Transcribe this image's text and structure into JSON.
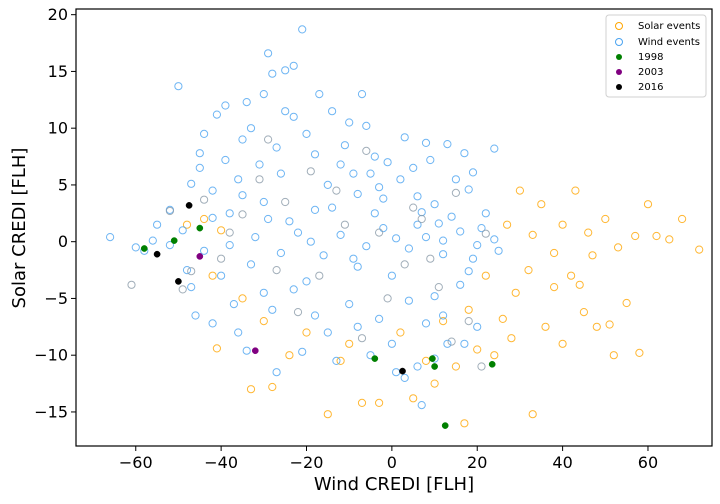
{
  "chart_data": {
    "type": "scatter",
    "title": "",
    "xlabel": "Wind CREDI [FLH]",
    "ylabel": "Solar CREDI [FLH]",
    "xlim": [
      -74,
      75
    ],
    "ylim": [
      -18,
      20.5
    ],
    "xticks": [
      -60,
      -40,
      -20,
      0,
      20,
      40,
      60
    ],
    "yticks": [
      -15,
      -10,
      -5,
      0,
      5,
      10,
      15,
      20
    ],
    "xtick_labels": [
      "−60",
      "−40",
      "−20",
      "0",
      "20",
      "40",
      "60"
    ],
    "ytick_labels": [
      "−15",
      "−10",
      "−5",
      "0",
      "5",
      "10",
      "15",
      "20"
    ],
    "grid": false,
    "legend_position": "top-right",
    "series": [
      {
        "name": "Solar events",
        "marker": "open-circle",
        "color": "#FFA500",
        "points": [
          [
            -15,
            -15.2
          ],
          [
            -3,
            -14.2
          ],
          [
            -7,
            -14.2
          ],
          [
            5,
            -13.8
          ],
          [
            -33,
            -13
          ],
          [
            -28,
            -12.8
          ],
          [
            17,
            -16
          ],
          [
            33,
            -15.2
          ],
          [
            58,
            -9.8
          ],
          [
            72,
            -0.7
          ],
          [
            68,
            2
          ],
          [
            60,
            3.3
          ],
          [
            62,
            0.5
          ],
          [
            55,
            -5.4
          ],
          [
            48,
            -7.5
          ],
          [
            52,
            -10
          ],
          [
            40,
            -9
          ],
          [
            45,
            -6.2
          ],
          [
            38,
            -4
          ],
          [
            35,
            3.3
          ],
          [
            30,
            4.5
          ],
          [
            43,
            4.5
          ],
          [
            50,
            2
          ],
          [
            57,
            0.5
          ],
          [
            65,
            0.2
          ],
          [
            47,
            -1.2
          ],
          [
            42,
            -3
          ],
          [
            36,
            -7.5
          ],
          [
            28,
            -8.5
          ],
          [
            24,
            -10
          ],
          [
            20,
            -9.5
          ],
          [
            15,
            -11
          ],
          [
            10,
            -12.5
          ],
          [
            -12,
            -10.5
          ],
          [
            -20,
            -8
          ],
          [
            -24,
            -10
          ],
          [
            -41,
            -9.4
          ],
          [
            -42,
            -3
          ],
          [
            -44,
            2
          ],
          [
            -48,
            1.5
          ],
          [
            -40,
            1
          ],
          [
            -35,
            -5
          ],
          [
            -30,
            -7
          ],
          [
            -10,
            -9
          ],
          [
            2,
            -8
          ],
          [
            8,
            -10.5
          ],
          [
            12,
            -7
          ],
          [
            18,
            -6
          ],
          [
            26,
            -6.8
          ],
          [
            32,
            -2.5
          ],
          [
            40,
            1.5
          ],
          [
            46,
            0.8
          ],
          [
            53,
            -0.5
          ],
          [
            38,
            -1
          ],
          [
            33,
            0.6
          ],
          [
            29,
            -4.5
          ],
          [
            22,
            -3
          ],
          [
            27,
            1.5
          ],
          [
            44,
            -3.8
          ],
          [
            51,
            -7.3
          ]
        ]
      },
      {
        "name": "Wind events",
        "marker": "open-circle",
        "color": "#4AA3F0",
        "points": [
          [
            -21,
            18.7
          ],
          [
            -29,
            16.6
          ],
          [
            -23,
            15.5
          ],
          [
            -25,
            15.1
          ],
          [
            -28,
            14.8
          ],
          [
            -50,
            13.7
          ],
          [
            -34,
            12.3
          ],
          [
            -30,
            13
          ],
          [
            -17,
            13
          ],
          [
            -41,
            11.2
          ],
          [
            -33,
            10
          ],
          [
            -23,
            11
          ],
          [
            -10,
            10.5
          ],
          [
            -6,
            10.2
          ],
          [
            -45,
            7.8
          ],
          [
            -39,
            7.2
          ],
          [
            -47,
            5.1
          ],
          [
            -42,
            4.5
          ],
          [
            -35,
            4.1
          ],
          [
            -27,
            8.3
          ],
          [
            -18,
            7.7
          ],
          [
            -12,
            6.8
          ],
          [
            -4,
            7.5
          ],
          [
            3,
            9.2
          ],
          [
            8,
            8.7
          ],
          [
            13,
            8.6
          ],
          [
            17,
            7.8
          ],
          [
            24,
            8.2
          ],
          [
            -66,
            0.4
          ],
          [
            -60,
            -0.5
          ],
          [
            -56,
            0.1
          ],
          [
            -52,
            -0.3
          ],
          [
            -49,
            1
          ],
          [
            -44,
            -0.8
          ],
          [
            -38,
            -0.3
          ],
          [
            -32,
            0.4
          ],
          [
            -26,
            -1
          ],
          [
            -22,
            0.8
          ],
          [
            -16,
            -1.2
          ],
          [
            -12,
            0.6
          ],
          [
            -6,
            -0.4
          ],
          [
            -2,
            1.2
          ],
          [
            4,
            -0.6
          ],
          [
            8,
            0.4
          ],
          [
            12,
            -1.1
          ],
          [
            16,
            0.9
          ],
          [
            20,
            -0.3
          ],
          [
            24,
            0.2
          ],
          [
            -46,
            -6.5
          ],
          [
            -36,
            -8
          ],
          [
            -27,
            -11.5
          ],
          [
            -21,
            -9.7
          ],
          [
            -13,
            -10.5
          ],
          [
            -8,
            -7.5
          ],
          [
            0,
            -9
          ],
          [
            6,
            -11
          ],
          [
            7,
            -14.4
          ],
          [
            3,
            -12
          ],
          [
            13,
            -9
          ],
          [
            -38,
            2.5
          ],
          [
            -30,
            3.5
          ],
          [
            -18,
            2.8
          ],
          [
            -8,
            4.2
          ],
          [
            2,
            5.5
          ],
          [
            10,
            3.3
          ],
          [
            18,
            4.6
          ],
          [
            22,
            2.5
          ],
          [
            -40,
            -3
          ],
          [
            -30,
            -4.5
          ],
          [
            -20,
            -3.5
          ],
          [
            -10,
            -5.5
          ],
          [
            0,
            -3
          ],
          [
            10,
            -4.8
          ],
          [
            18,
            -2.6
          ],
          [
            -33,
            -2
          ],
          [
            -24,
            1.8
          ],
          [
            -14,
            3
          ],
          [
            -4,
            2.5
          ],
          [
            6,
            1.5
          ],
          [
            14,
            2.2
          ],
          [
            -48,
            -2.5
          ],
          [
            -42,
            2.1
          ],
          [
            -36,
            5.5
          ],
          [
            -26,
            6
          ],
          [
            -15,
            5
          ],
          [
            -5,
            6
          ],
          [
            5,
            6.5
          ],
          [
            15,
            5.5
          ],
          [
            -28,
            -6
          ],
          [
            -18,
            -6.5
          ],
          [
            -8,
            -2.2
          ],
          [
            4,
            -5.2
          ],
          [
            12,
            -6.5
          ],
          [
            20,
            -7.5
          ],
          [
            -35,
            9
          ],
          [
            -44,
            9.5
          ],
          [
            -39,
            12
          ],
          [
            -11,
            8.5
          ],
          [
            -1,
            7
          ],
          [
            9,
            7.2
          ],
          [
            19,
            6.1
          ],
          [
            -52,
            2.8
          ],
          [
            -58,
            -0.8
          ],
          [
            -47,
            -4
          ],
          [
            -37,
            -5.5
          ],
          [
            -23,
            -4.2
          ],
          [
            -3,
            -6.8
          ],
          [
            8,
            -7.2
          ],
          [
            16,
            -3.8
          ],
          [
            21,
            1.2
          ],
          [
            25,
            -0.8
          ],
          [
            -31,
            6.8
          ],
          [
            -20,
            9.5
          ],
          [
            -9,
            6
          ],
          [
            -2,
            3.8
          ],
          [
            6,
            4
          ],
          [
            12,
            0.1
          ],
          [
            -15,
            -8
          ],
          [
            -5,
            -10
          ],
          [
            1,
            -11.5
          ],
          [
            10,
            -10.3
          ],
          [
            17,
            -9
          ],
          [
            -42,
            -7.2
          ],
          [
            -34,
            -9.6
          ],
          [
            -29,
            2
          ],
          [
            -19,
            0
          ],
          [
            -9,
            -1.5
          ],
          [
            1,
            0.3
          ],
          [
            11,
            1.6
          ],
          [
            19,
            -1.5
          ],
          [
            -55,
            1.5
          ],
          [
            -45,
            6.5
          ],
          [
            -25,
            11.5
          ],
          [
            -14,
            11.5
          ],
          [
            -7,
            13
          ],
          [
            -3,
            4.8
          ],
          [
            7,
            2.6
          ]
        ]
      },
      {
        "name": "1998",
        "marker": "filled-circle",
        "color": "#008000",
        "points": [
          [
            -58,
            -0.6
          ],
          [
            -51,
            0.1
          ],
          [
            -45,
            1.2
          ],
          [
            -4,
            -10.3
          ],
          [
            9.5,
            -10.3
          ],
          [
            10,
            -11
          ],
          [
            23.5,
            -10.8
          ],
          [
            12.5,
            -16.2
          ]
        ]
      },
      {
        "name": "2003",
        "marker": "filled-circle",
        "color": "#800080",
        "points": [
          [
            -45,
            -1.3
          ],
          [
            -32,
            -9.6
          ]
        ]
      },
      {
        "name": "2016",
        "marker": "filled-circle",
        "color": "#000000",
        "points": [
          [
            -55,
            -1.1
          ],
          [
            -47.5,
            3.2
          ],
          [
            -50,
            -3.5
          ],
          [
            2.5,
            -11.4
          ]
        ]
      }
    ],
    "background_series": {
      "marker": "open-circle",
      "color": "#8A9AA8",
      "points": [
        [
          -61,
          -3.8
        ],
        [
          -52,
          2.7
        ],
        [
          -49,
          -4.2
        ],
        [
          -47,
          -2.6
        ],
        [
          -38,
          0.8
        ],
        [
          -31,
          5.5
        ],
        [
          -25,
          3.5
        ],
        [
          -22,
          -6.2
        ],
        [
          -17,
          -3
        ],
        [
          -11,
          1.5
        ],
        [
          -7,
          -8.5
        ],
        [
          -3,
          0.8
        ],
        [
          3,
          -2
        ],
        [
          7,
          2
        ],
        [
          11,
          -4
        ],
        [
          15,
          4.3
        ],
        [
          18,
          -7
        ],
        [
          21,
          -11
        ],
        [
          -40,
          -1.5
        ],
        [
          -35,
          2.4
        ],
        [
          -27,
          -2.5
        ],
        [
          -13,
          4.5
        ],
        [
          -1,
          -5
        ],
        [
          9,
          -1.5
        ],
        [
          14,
          -8.8
        ],
        [
          22,
          0.7
        ],
        [
          -44,
          3.7
        ],
        [
          -29,
          9
        ],
        [
          -19,
          6.2
        ],
        [
          -6,
          8
        ],
        [
          5,
          3
        ]
      ]
    },
    "legend": [
      "Solar events",
      "Wind events",
      "1998",
      "2003",
      "2016"
    ]
  }
}
